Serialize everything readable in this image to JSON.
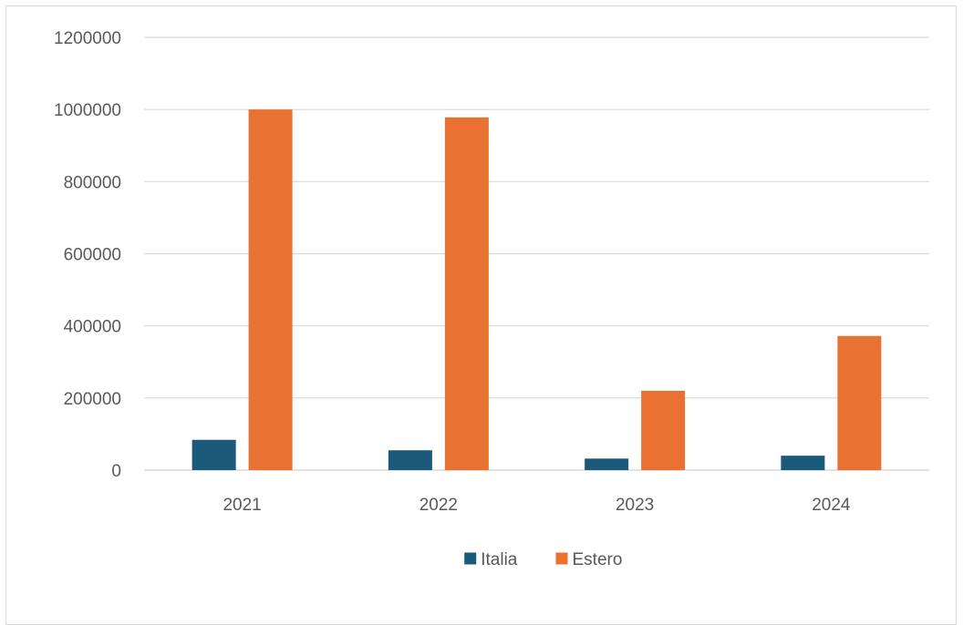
{
  "chart_data": {
    "type": "bar",
    "categories": [
      "2021",
      "2022",
      "2023",
      "2024"
    ],
    "series": [
      {
        "name": "Italia",
        "color": "#1b5a7a",
        "values": [
          84000,
          55000,
          32000,
          40000
        ]
      },
      {
        "name": "Estero",
        "color": "#e97132",
        "values": [
          1000000,
          978000,
          220000,
          372000
        ]
      }
    ],
    "ylim": [
      0,
      1200000
    ],
    "yticks": [
      "0",
      "200000",
      "400000",
      "600000",
      "800000",
      "1000000",
      "1200000"
    ],
    "grid": true,
    "legend_position": "bottom"
  }
}
